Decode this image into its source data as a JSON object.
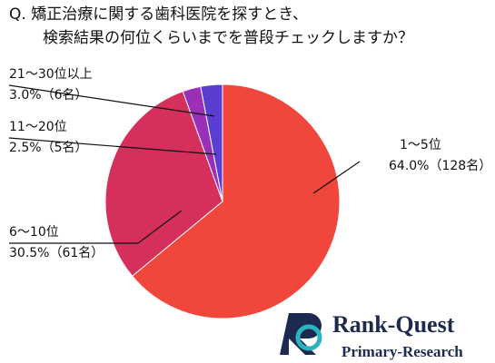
{
  "chart_data": {
    "type": "pie",
    "title": [
      "Q. 矯正治療に関する歯科医院を探すとき、",
      "検索結果の何位くらいまでを普段チェックしますか？"
    ],
    "categories": [
      "1〜5位",
      "6〜10位",
      "11〜20位",
      "21〜30位以上"
    ],
    "values": [
      64.0,
      30.5,
      2.5,
      3.0
    ],
    "value_labels": [
      "64.0%（128名）",
      "30.5%（61名）",
      "2.5%（5名）",
      "3.0%（6名）"
    ],
    "colors": [
      "#f0463c",
      "#d5305c",
      "#9a2fb8",
      "#5a3ed2"
    ]
  },
  "logo": {
    "name": "Rank-Quest",
    "tagline": "Primary-Research"
  }
}
